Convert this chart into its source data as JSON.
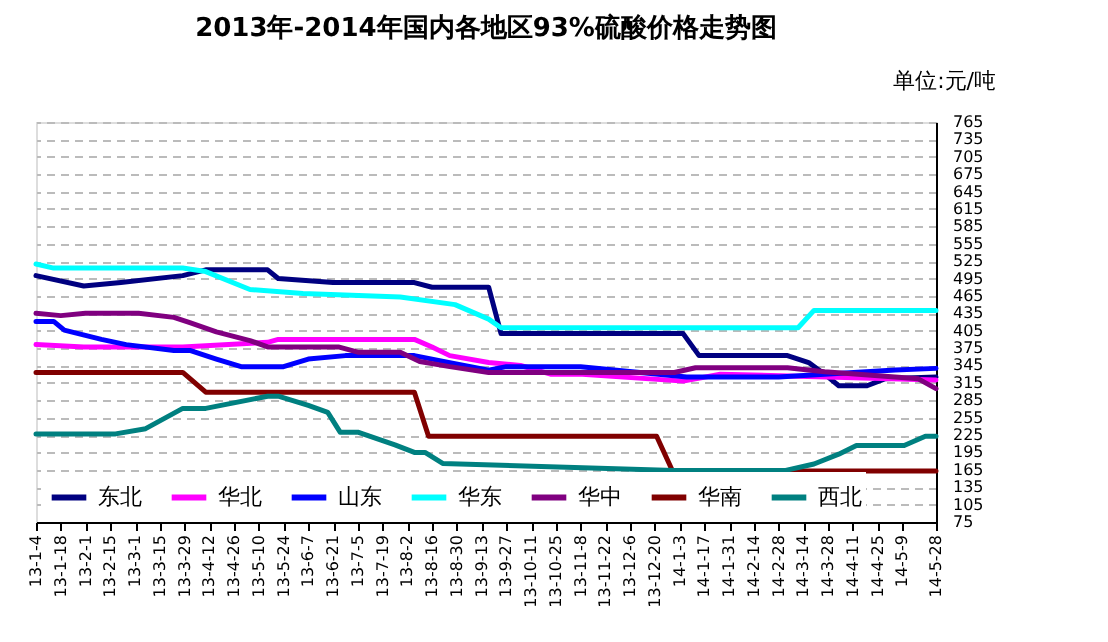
{
  "chart_data": {
    "type": "line",
    "title": "2013年-2014年国内各地区93%硫酸价格走势图",
    "annotations": [
      "单位:元/吨"
    ],
    "xlim": [
      "2013-01-04",
      "2014-05-28"
    ],
    "xticks": [
      {
        "value": "2013-01-04",
        "label": "13-1-4"
      },
      {
        "value": "2013-01-18",
        "label": "13-1-18"
      },
      {
        "value": "2013-02-01",
        "label": "13-2-1"
      },
      {
        "value": "2013-02-15",
        "label": "13-2-15"
      },
      {
        "value": "2013-03-01",
        "label": "13-3-1"
      },
      {
        "value": "2013-03-15",
        "label": "13-3-15"
      },
      {
        "value": "2013-03-29",
        "label": "13-3-29"
      },
      {
        "value": "2013-04-12",
        "label": "13-4-12"
      },
      {
        "value": "2013-04-26",
        "label": "13-4-26"
      },
      {
        "value": "2013-05-10",
        "label": "13-5-10"
      },
      {
        "value": "2013-05-24",
        "label": "13-5-24"
      },
      {
        "value": "2013-06-07",
        "label": "13-6-7"
      },
      {
        "value": "2013-06-21",
        "label": "13-6-21"
      },
      {
        "value": "2013-07-05",
        "label": "13-7-5"
      },
      {
        "value": "2013-07-19",
        "label": "13-7-19"
      },
      {
        "value": "2013-08-02",
        "label": "13-8-2"
      },
      {
        "value": "2013-08-16",
        "label": "13-8-16"
      },
      {
        "value": "2013-08-30",
        "label": "13-8-30"
      },
      {
        "value": "2013-09-13",
        "label": "13-9-13"
      },
      {
        "value": "2013-09-27",
        "label": "13-9-27"
      },
      {
        "value": "2013-10-11",
        "label": "13-10-11"
      },
      {
        "value": "2013-10-25",
        "label": "13-10-25"
      },
      {
        "value": "2013-11-08",
        "label": "13-11-8"
      },
      {
        "value": "2013-11-22",
        "label": "13-11-22"
      },
      {
        "value": "2013-12-06",
        "label": "13-12-6"
      },
      {
        "value": "2013-12-20",
        "label": "13-12-20"
      },
      {
        "value": "2014-01-03",
        "label": "14-1-3"
      },
      {
        "value": "2014-01-17",
        "label": "14-1-17"
      },
      {
        "value": "2014-01-31",
        "label": "14-1-31"
      },
      {
        "value": "2014-02-14",
        "label": "14-2-14"
      },
      {
        "value": "2014-02-28",
        "label": "14-2-28"
      },
      {
        "value": "2014-03-14",
        "label": "14-3-14"
      },
      {
        "value": "2014-03-28",
        "label": "14-3-28"
      },
      {
        "value": "2014-04-11",
        "label": "14-4-11"
      },
      {
        "value": "2014-04-25",
        "label": "14-4-25"
      },
      {
        "value": "2014-05-09",
        "label": "14-5-9"
      },
      {
        "value": "2014-05-28",
        "label": "14-5-28"
      }
    ],
    "ylim": [
      75,
      765
    ],
    "yticks": [
      75,
      105,
      135,
      165,
      195,
      225,
      255,
      285,
      315,
      345,
      375,
      405,
      435,
      465,
      495,
      525,
      555,
      585,
      615,
      645,
      675,
      705,
      735,
      765
    ],
    "grid": "y",
    "legend": "bottom left",
    "marker": "none",
    "line_style": "solid",
    "series": [
      {
        "name": "东北",
        "color": "#000080",
        "x": [
          "2013-01-04",
          "2013-01-31",
          "2013-02-21",
          "2013-03-28",
          "2013-04-10",
          "2013-05-15",
          "2013-05-21",
          "2013-06-21",
          "2013-08-06",
          "2013-08-16",
          "2013-09-17",
          "2013-09-24",
          "2014-01-05",
          "2014-01-14",
          "2014-03-05",
          "2014-03-17",
          "2014-03-26",
          "2014-04-03",
          "2014-04-19",
          "2014-04-29",
          "2014-05-28"
        ],
        "values": [
          500,
          482,
          488,
          500,
          510,
          510,
          495,
          488,
          488,
          480,
          480,
          400,
          400,
          362,
          362,
          350,
          330,
          310,
          310,
          322,
          325
        ]
      },
      {
        "name": "华北",
        "color": "#ff00ff",
        "x": [
          "2013-01-04",
          "2013-01-31",
          "2013-03-28",
          "2013-05-15",
          "2013-05-21",
          "2013-08-06",
          "2013-08-16",
          "2013-08-26",
          "2013-09-17",
          "2013-10-05",
          "2013-10-22",
          "2013-11-09",
          "2014-01-05",
          "2014-01-26",
          "2014-05-28"
        ],
        "values": [
          381,
          377,
          377,
          385,
          390,
          390,
          377,
          362,
          350,
          345,
          330,
          330,
          318,
          330,
          320
        ]
      },
      {
        "name": "山东",
        "color": "#0000ff",
        "x": [
          "2013-01-04",
          "2013-01-14",
          "2013-01-20",
          "2013-02-10",
          "2013-02-24",
          "2013-03-23",
          "2013-04-01",
          "2013-04-16",
          "2013-04-30",
          "2013-05-24",
          "2013-06-07",
          "2013-06-28",
          "2013-08-06",
          "2013-08-26",
          "2013-09-17",
          "2013-09-27",
          "2013-11-08",
          "2014-01-07",
          "2014-02-28",
          "2014-05-05",
          "2014-05-28"
        ],
        "values": [
          421,
          421,
          406,
          390,
          381,
          371,
          371,
          356,
          343,
          343,
          356,
          362,
          362,
          350,
          337,
          343,
          343,
          325,
          325,
          337,
          340
        ]
      },
      {
        "name": "华东",
        "color": "#00ffff",
        "x": [
          "2013-01-04",
          "2013-01-14",
          "2013-03-28",
          "2013-04-10",
          "2013-05-05",
          "2013-06-04",
          "2013-07-29",
          "2013-08-29",
          "2013-09-17",
          "2013-09-24",
          "2014-03-11",
          "2014-03-20",
          "2014-05-28"
        ],
        "values": [
          520,
          513,
          513,
          507,
          476,
          469,
          463,
          450,
          425,
          410,
          410,
          440,
          440
        ]
      },
      {
        "name": "华中",
        "color": "#800080",
        "x": [
          "2013-01-04",
          "2013-01-18",
          "2013-02-01",
          "2013-03-03",
          "2013-03-23",
          "2013-04-01",
          "2013-04-16",
          "2013-05-05",
          "2013-05-15",
          "2013-06-24",
          "2013-07-05",
          "2013-07-29",
          "2013-08-09",
          "2013-08-26",
          "2013-09-17",
          "2013-12-31",
          "2014-01-12",
          "2014-03-05",
          "2014-03-26",
          "2014-05-18",
          "2014-05-28"
        ],
        "values": [
          435,
          431,
          435,
          435,
          428,
          419,
          403,
          388,
          377,
          377,
          368,
          368,
          352,
          343,
          333,
          333,
          341,
          341,
          334,
          322,
          305
        ]
      },
      {
        "name": "华南",
        "color": "#800000",
        "x": [
          "2013-01-04",
          "2013-03-28",
          "2013-04-10",
          "2013-08-06",
          "2013-08-14",
          "2013-12-21",
          "2013-12-30",
          "2014-05-28"
        ],
        "values": [
          333,
          333,
          299,
          299,
          223,
          223,
          163,
          163
        ]
      },
      {
        "name": "西北",
        "color": "#008080",
        "x": [
          "2013-01-04",
          "2013-02-18",
          "2013-03-07",
          "2013-03-28",
          "2013-04-10",
          "2013-05-15",
          "2013-05-21",
          "2013-06-07",
          "2013-06-18",
          "2013-06-25",
          "2013-07-05",
          "2013-07-26",
          "2013-08-06",
          "2013-08-12",
          "2013-08-22",
          "2013-12-31",
          "2014-03-04",
          "2014-03-20",
          "2014-04-03",
          "2014-04-13",
          "2014-05-10",
          "2014-05-22",
          "2014-05-28"
        ],
        "values": [
          227,
          227,
          236,
          271,
          271,
          292,
          292,
          276,
          264,
          230,
          230,
          208,
          195,
          195,
          176,
          164,
          164,
          175,
          192,
          207,
          207,
          223,
          223
        ]
      }
    ]
  }
}
